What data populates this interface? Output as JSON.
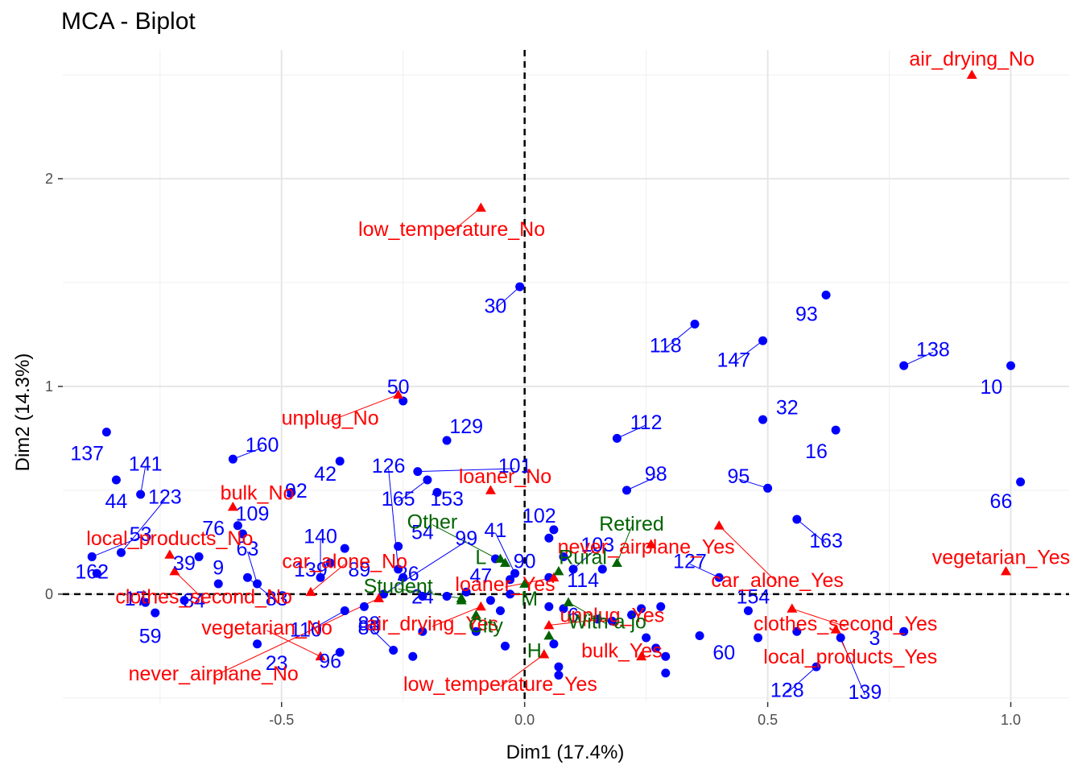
{
  "chart_data": {
    "type": "scatter",
    "title": "MCA - Biplot",
    "xlabel": "Dim1 (17.4%)",
    "ylabel": "Dim2 (14.3%)",
    "xlim": [
      -0.95,
      1.12
    ],
    "ylim": [
      -0.52,
      2.62
    ],
    "xticks": [
      -0.5,
      0.0,
      0.5,
      1.0
    ],
    "xtick_labels": [
      "-0.5",
      "0.0",
      "0.5",
      "1.0"
    ],
    "yticks": [
      0,
      1,
      2
    ],
    "ytick_labels": [
      "0",
      "1",
      "2"
    ],
    "grid": true,
    "reference_lines": {
      "x": 0,
      "y": 0,
      "style": "dashed"
    },
    "colors": {
      "individuals": "#0000ff",
      "variables": "#ff0000",
      "supplementary": "#006400"
    },
    "series": [
      {
        "marker": "circle",
        "points": [
          {
            "x": -0.86,
            "y": 0.78,
            "label": "137",
            "lx": -0.9,
            "ly": 0.68
          },
          {
            "x": -0.79,
            "y": 0.48,
            "label": "141",
            "lx": -0.78,
            "ly": 0.63
          },
          {
            "x": -0.84,
            "y": 0.55,
            "label": "44",
            "lx": -0.84,
            "ly": 0.45
          },
          {
            "x": -0.83,
            "y": 0.2,
            "label": "123",
            "lx": -0.74,
            "ly": 0.47
          },
          {
            "x": -0.89,
            "y": 0.18,
            "label": "53",
            "lx": -0.79,
            "ly": 0.29
          },
          {
            "x": -0.88,
            "y": 0.1,
            "label": "162",
            "lx": -0.89,
            "ly": 0.11
          },
          {
            "x": -0.78,
            "y": -0.04,
            "label": "17",
            "lx": -0.8,
            "ly": -0.02
          },
          {
            "x": -0.76,
            "y": -0.09,
            "label": "59",
            "lx": -0.77,
            "ly": -0.2
          },
          {
            "x": -0.7,
            "y": -0.03,
            "label": "84",
            "lx": -0.68,
            "ly": -0.03
          },
          {
            "x": -0.63,
            "y": 0.05,
            "label": "9",
            "lx": -0.63,
            "ly": 0.13
          },
          {
            "x": -0.67,
            "y": 0.18,
            "label": "39",
            "lx": -0.7,
            "ly": 0.15
          },
          {
            "x": -0.58,
            "y": 0.29,
            "label": "76",
            "lx": -0.64,
            "ly": 0.32
          },
          {
            "x": -0.6,
            "y": 0.65,
            "label": "160",
            "lx": -0.54,
            "ly": 0.72
          },
          {
            "x": -0.59,
            "y": 0.33,
            "label": "109",
            "lx": -0.56,
            "ly": 0.39
          },
          {
            "x": -0.55,
            "y": 0.05,
            "label": "63",
            "lx": -0.57,
            "ly": 0.22
          },
          {
            "x": -0.57,
            "y": 0.08,
            "label": "83",
            "lx": -0.51,
            "ly": -0.02
          },
          {
            "x": -0.48,
            "y": 0.49,
            "label": "92",
            "lx": -0.47,
            "ly": 0.5
          },
          {
            "x": -0.38,
            "y": 0.64,
            "label": "42",
            "lx": -0.41,
            "ly": 0.58
          },
          {
            "x": -0.42,
            "y": 0.08,
            "label": "140",
            "lx": -0.42,
            "ly": 0.28
          },
          {
            "x": -0.4,
            "y": 0.15,
            "label": "139",
            "lx": -0.44,
            "ly": 0.12
          },
          {
            "x": -0.37,
            "y": 0.22,
            "label": "89",
            "lx": -0.34,
            "ly": 0.12
          },
          {
            "x": -0.26,
            "y": 0.12,
            "label": "126",
            "lx": -0.28,
            "ly": 0.62
          },
          {
            "x": -0.25,
            "y": 0.93,
            "label": "50",
            "lx": -0.26,
            "ly": 1.0
          },
          {
            "x": -0.16,
            "y": 0.74,
            "label": "129",
            "lx": -0.12,
            "ly": 0.81
          },
          {
            "x": -0.2,
            "y": 0.55,
            "label": "165",
            "lx": -0.26,
            "ly": 0.46
          },
          {
            "x": -0.18,
            "y": 0.49,
            "label": "153",
            "lx": -0.16,
            "ly": 0.46
          },
          {
            "x": -0.22,
            "y": 0.59,
            "label": "101",
            "lx": -0.02,
            "ly": 0.62
          },
          {
            "x": -0.26,
            "y": 0.23,
            "label": "54",
            "lx": -0.21,
            "ly": 0.3
          },
          {
            "x": -0.29,
            "y": 0.0,
            "label": "99",
            "lx": -0.12,
            "ly": 0.27
          },
          {
            "x": -0.25,
            "y": 0.08,
            "label": "26",
            "lx": -0.24,
            "ly": 0.1
          },
          {
            "x": -0.21,
            "y": -0.01,
            "label": "24",
            "lx": -0.21,
            "ly": -0.01
          },
          {
            "x": -0.33,
            "y": -0.06,
            "label": "86",
            "lx": -0.32,
            "ly": -0.16
          },
          {
            "x": -0.37,
            "y": -0.08,
            "label": "110",
            "lx": -0.45,
            "ly": -0.17
          },
          {
            "x": -0.55,
            "y": -0.24,
            "label": "23",
            "lx": -0.51,
            "ly": -0.33
          },
          {
            "x": -0.38,
            "y": -0.28,
            "label": "96",
            "lx": -0.4,
            "ly": -0.32
          },
          {
            "x": -0.27,
            "y": -0.27,
            "label": "88b",
            "lx": -0.32,
            "ly": -0.14
          },
          {
            "x": -0.23,
            "y": -0.3,
            "label": "",
            "lx": 0,
            "ly": 0
          },
          {
            "x": -0.21,
            "y": -0.18,
            "label": "",
            "lx": 0,
            "ly": 0
          },
          {
            "x": -0.16,
            "y": -0.01,
            "label": "",
            "lx": 0,
            "ly": 0
          },
          {
            "x": -0.12,
            "y": 0.01,
            "label": "",
            "lx": 0,
            "ly": 0
          },
          {
            "x": -0.1,
            "y": -0.18,
            "label": "",
            "lx": 0,
            "ly": 0
          },
          {
            "x": -0.07,
            "y": -0.03,
            "label": "",
            "lx": 0,
            "ly": 0
          },
          {
            "x": -0.05,
            "y": -0.08,
            "label": "",
            "lx": 0,
            "ly": 0
          },
          {
            "x": -0.04,
            "y": -0.25,
            "label": "",
            "lx": 0,
            "ly": 0
          },
          {
            "x": -0.06,
            "y": 0.17,
            "label": "47",
            "lx": -0.09,
            "ly": 0.09
          },
          {
            "x": -0.03,
            "y": 0.0,
            "label": "",
            "lx": 0,
            "ly": 0
          },
          {
            "x": -0.02,
            "y": 0.1,
            "label": "41",
            "lx": -0.06,
            "ly": 0.31
          },
          {
            "x": -0.03,
            "y": 0.07,
            "label": "",
            "lx": 0,
            "ly": 0
          },
          {
            "x": 0.05,
            "y": 0.27,
            "label": "102",
            "lx": 0.03,
            "ly": 0.38
          },
          {
            "x": 0.06,
            "y": 0.31,
            "label": "",
            "lx": 0,
            "ly": 0
          },
          {
            "x": 0.05,
            "y": 0.08,
            "label": "90",
            "lx": 0.0,
            "ly": 0.16
          },
          {
            "x": 0.08,
            "y": 0.18,
            "label": "",
            "lx": 0,
            "ly": 0
          },
          {
            "x": 0.1,
            "y": 0.12,
            "label": "103",
            "lx": 0.15,
            "ly": 0.24
          },
          {
            "x": 0.16,
            "y": 0.12,
            "label": "114",
            "lx": 0.12,
            "ly": 0.07
          },
          {
            "x": 0.05,
            "y": -0.06,
            "label": "6",
            "lx": 0.1,
            "ly": -0.1
          },
          {
            "x": 0.08,
            "y": -0.07,
            "label": "",
            "lx": 0,
            "ly": 0
          },
          {
            "x": 0.15,
            "y": -0.12,
            "label": "",
            "lx": 0,
            "ly": 0
          },
          {
            "x": 0.06,
            "y": -0.24,
            "label": "",
            "lx": 0,
            "ly": 0
          },
          {
            "x": 0.07,
            "y": -0.35,
            "label": "",
            "lx": 0,
            "ly": 0
          },
          {
            "x": 0.07,
            "y": -0.39,
            "label": "",
            "lx": 0,
            "ly": 0
          },
          {
            "x": 0.18,
            "y": -0.13,
            "label": "",
            "lx": 0,
            "ly": 0
          },
          {
            "x": 0.22,
            "y": -0.1,
            "label": "",
            "lx": 0,
            "ly": 0
          },
          {
            "x": 0.24,
            "y": -0.07,
            "label": "",
            "lx": 0,
            "ly": 0
          },
          {
            "x": 0.28,
            "y": -0.06,
            "label": "",
            "lx": 0,
            "ly": 0
          },
          {
            "x": 0.25,
            "y": -0.21,
            "label": "",
            "lx": 0,
            "ly": 0
          },
          {
            "x": 0.27,
            "y": -0.26,
            "label": "",
            "lx": 0,
            "ly": 0
          },
          {
            "x": 0.29,
            "y": -0.3,
            "label": "",
            "lx": 0,
            "ly": 0
          },
          {
            "x": 0.29,
            "y": -0.38,
            "label": "",
            "lx": 0,
            "ly": 0
          },
          {
            "x": 0.36,
            "y": -0.2,
            "label": "60",
            "lx": 0.41,
            "ly": -0.28
          },
          {
            "x": 0.19,
            "y": 0.75,
            "label": "112",
            "lx": 0.25,
            "ly": 0.83
          },
          {
            "x": 0.21,
            "y": 0.5,
            "label": "98",
            "lx": 0.27,
            "ly": 0.58
          },
          {
            "x": 0.35,
            "y": 1.3,
            "label": "118",
            "lx": 0.29,
            "ly": 1.2
          },
          {
            "x": 0.49,
            "y": 1.22,
            "label": "147",
            "lx": 0.43,
            "ly": 1.13
          },
          {
            "x": 0.62,
            "y": 1.44,
            "label": "93",
            "lx": 0.58,
            "ly": 1.35
          },
          {
            "x": 0.49,
            "y": 0.84,
            "label": "32",
            "lx": 0.54,
            "ly": 0.9
          },
          {
            "x": 0.5,
            "y": 0.51,
            "label": "95",
            "lx": 0.44,
            "ly": 0.57
          },
          {
            "x": 0.64,
            "y": 0.79,
            "label": "16",
            "lx": 0.6,
            "ly": 0.69
          },
          {
            "x": 0.56,
            "y": 0.36,
            "label": "163",
            "lx": 0.62,
            "ly": 0.26
          },
          {
            "x": 0.4,
            "y": 0.08,
            "label": "127",
            "lx": 0.34,
            "ly": 0.16
          },
          {
            "x": 0.46,
            "y": -0.08,
            "label": "154",
            "lx": 0.47,
            "ly": -0.01
          },
          {
            "x": 0.48,
            "y": -0.21,
            "label": "",
            "lx": 0,
            "ly": 0
          },
          {
            "x": 0.56,
            "y": -0.18,
            "label": "",
            "lx": 0,
            "ly": 0
          },
          {
            "x": 0.6,
            "y": -0.35,
            "label": "128",
            "lx": 0.54,
            "ly": -0.46
          },
          {
            "x": 0.65,
            "y": -0.21,
            "label": "139b",
            "lx": 0.7,
            "ly": -0.47
          },
          {
            "x": 0.78,
            "y": -0.18,
            "label": "3",
            "lx": 0.72,
            "ly": -0.21
          },
          {
            "x": 0.78,
            "y": 1.1,
            "label": "138",
            "lx": 0.84,
            "ly": 1.18
          },
          {
            "x": 1.0,
            "y": 1.1,
            "label": "10",
            "lx": 0.96,
            "ly": 1.0
          },
          {
            "x": 1.02,
            "y": 0.54,
            "label": "66",
            "lx": 0.98,
            "ly": 0.45
          },
          {
            "x": -0.01,
            "y": 1.48,
            "label": "30",
            "lx": -0.06,
            "ly": 1.39
          }
        ]
      },
      {
        "marker": "triangle",
        "points": [
          {
            "x": 0.92,
            "y": 2.5,
            "label": "air_drying_No",
            "lx": 0.92,
            "ly": 2.58
          },
          {
            "x": -0.09,
            "y": 1.86,
            "label": "low_temperature_No",
            "lx": -0.15,
            "ly": 1.76
          },
          {
            "x": -0.26,
            "y": 0.96,
            "label": "unplug_No",
            "lx": -0.4,
            "ly": 0.85
          },
          {
            "x": -0.07,
            "y": 0.5,
            "label": "loaner_No",
            "lx": -0.04,
            "ly": 0.57
          },
          {
            "x": -0.6,
            "y": 0.42,
            "label": "bulk_No",
            "lx": -0.55,
            "ly": 0.49
          },
          {
            "x": -0.73,
            "y": 0.19,
            "label": "local_products_No",
            "lx": -0.73,
            "ly": 0.27
          },
          {
            "x": -0.72,
            "y": 0.11,
            "label": "clothes_second_No",
            "lx": -0.66,
            "ly": -0.01
          },
          {
            "x": -0.44,
            "y": 0.01,
            "label": "car_alone_No",
            "lx": -0.37,
            "ly": 0.16
          },
          {
            "x": -0.42,
            "y": -0.3,
            "label": "vegetarian_No",
            "lx": -0.53,
            "ly": -0.16
          },
          {
            "x": -0.3,
            "y": -0.02,
            "label": "never_airplane_No",
            "lx": -0.64,
            "ly": -0.38
          },
          {
            "x": -0.09,
            "y": -0.06,
            "label": "air_drying_Yes",
            "lx": -0.19,
            "ly": -0.14
          },
          {
            "x": 0.06,
            "y": 0.08,
            "label": "loaner_Yes",
            "lx": -0.04,
            "ly": 0.05
          },
          {
            "x": 0.05,
            "y": -0.15,
            "label": "unplug_Yes",
            "lx": 0.18,
            "ly": -0.1
          },
          {
            "x": 0.04,
            "y": -0.29,
            "label": "low_temperature_Yes",
            "lx": -0.05,
            "ly": -0.43
          },
          {
            "x": 0.24,
            "y": -0.3,
            "label": "bulk_Yes",
            "lx": 0.2,
            "ly": -0.27
          },
          {
            "x": 0.26,
            "y": 0.24,
            "label": "never_airplane_Yes",
            "lx": 0.25,
            "ly": 0.23
          },
          {
            "x": 0.4,
            "y": 0.33,
            "label": "car_alone_Yes",
            "lx": 0.52,
            "ly": 0.07
          },
          {
            "x": 0.55,
            "y": -0.07,
            "label": "clothes_second_Yes",
            "lx": 0.66,
            "ly": -0.14
          },
          {
            "x": 0.64,
            "y": -0.17,
            "label": "local_products_Yes",
            "lx": 0.67,
            "ly": -0.3
          },
          {
            "x": 0.99,
            "y": 0.11,
            "label": "vegetarian_Yes",
            "lx": 0.98,
            "ly": 0.18
          }
        ]
      },
      {
        "marker": "triangle",
        "points": [
          {
            "x": -0.04,
            "y": 0.15,
            "label": "Other",
            "lx": -0.19,
            "ly": 0.35
          },
          {
            "x": 0.19,
            "y": 0.15,
            "label": "Retired",
            "lx": 0.22,
            "ly": 0.34
          },
          {
            "x": -0.05,
            "y": 0.17,
            "label": "L",
            "lx": -0.09,
            "ly": 0.18
          },
          {
            "x": 0.07,
            "y": 0.11,
            "label": "Rural",
            "lx": 0.12,
            "ly": 0.18
          },
          {
            "x": -0.13,
            "y": -0.02,
            "label": "Student",
            "lx": -0.26,
            "ly": 0.04
          },
          {
            "x": 0.0,
            "y": 0.05,
            "label": "M",
            "lx": 0.01,
            "ly": -0.02
          },
          {
            "x": -0.1,
            "y": -0.1,
            "label": "City",
            "lx": -0.08,
            "ly": -0.15
          },
          {
            "x": 0.09,
            "y": -0.04,
            "label": "With a job",
            "lx": 0.17,
            "ly": -0.13
          },
          {
            "x": 0.05,
            "y": -0.2,
            "label": "H",
            "lx": 0.02,
            "ly": -0.27
          },
          {
            "x": -0.13,
            "y": -0.03,
            "label": "",
            "lx": 0,
            "ly": 0
          }
        ]
      }
    ]
  }
}
